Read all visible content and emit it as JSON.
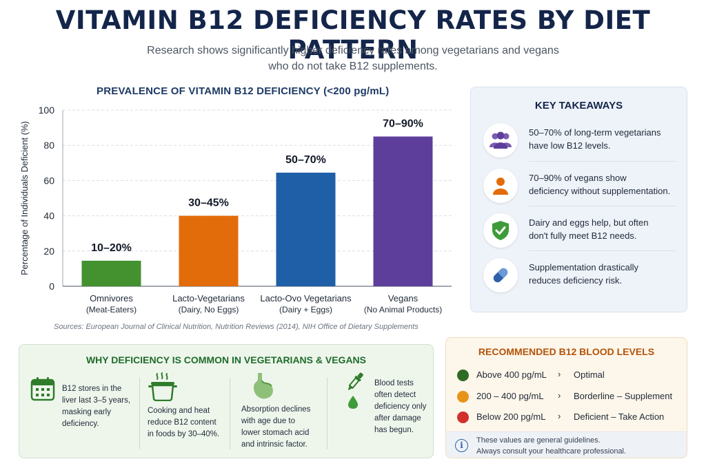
{
  "header": {
    "title": "VITAMIN B12 DEFICIENCY RATES BY DIET PATTERN",
    "subtitle_line1": "Research shows significantly higher deficiency rates among vegetarians and vegans",
    "subtitle_line2": "who do not take B12 supplements."
  },
  "chart_data": {
    "type": "bar",
    "title": "PREVALENCE OF VITAMIN B12 DEFICIENCY (<200 pg/mL)",
    "ylabel": "Percentage of Individuals Deficient (%)",
    "xlabel": "",
    "ylim": [
      0,
      100
    ],
    "yticks": [
      0,
      20,
      40,
      60,
      80,
      100
    ],
    "grid": true,
    "categories": [
      {
        "line1": "Omnivores",
        "line2": "(Meat-Eaters)"
      },
      {
        "line1": "Lacto-Vegetarians",
        "line2": "(Dairy, No Eggs)"
      },
      {
        "line1": "Lacto-Ovo Vegetarians",
        "line2": "(Dairy + Eggs)"
      },
      {
        "line1": "Vegans",
        "line2": "(No Animal Products)"
      }
    ],
    "values": [
      14.5,
      40,
      64.5,
      85
    ],
    "value_labels": [
      "10–20%",
      "30–45%",
      "50–70%",
      "70–90%"
    ],
    "colors": [
      "#43912f",
      "#e36c0a",
      "#1f5fa7",
      "#5e3e9b"
    ]
  },
  "sources": "Sources:  European Journal of Clinical Nutrition, Nutrition Reviews (2014), NIH Office of Dietary Supplements",
  "takeaways": {
    "title": "KEY TAKEAWAYS",
    "items": [
      {
        "icon": "people-icon",
        "line1": "50–70% of long-term vegetarians",
        "line2": "have low B12 levels."
      },
      {
        "icon": "person-icon",
        "line1": "70–90% of vegans show",
        "line2": "deficiency without supplementation."
      },
      {
        "icon": "shield-check-icon",
        "line1": "Dairy and eggs help, but often",
        "line2": "don't fully meet B12 needs."
      },
      {
        "icon": "pill-icon",
        "line1": "Supplementation drastically",
        "line2": "reduces deficiency risk."
      }
    ]
  },
  "why": {
    "title": "WHY DEFICIENCY IS COMMON IN VEGETARIANS & VEGANS",
    "items": [
      {
        "icon": "calendar-icon",
        "lines": [
          "B12 stores in the",
          "liver last 3–5 years,",
          "masking early",
          "deficiency."
        ]
      },
      {
        "icon": "cooking-pot-icon",
        "lines": [
          "Cooking and heat",
          "reduce B12 content",
          "in foods by 30–40%."
        ]
      },
      {
        "icon": "stomach-icon",
        "lines": [
          "Absorption declines",
          "with age due to",
          "lower stomach acid",
          "and intrinsic factor."
        ]
      },
      {
        "icon": "dropper-icon",
        "lines": [
          "Blood tests",
          "often detect",
          "deficiency only",
          "after damage",
          "has begun."
        ]
      }
    ]
  },
  "levels": {
    "title": "RECOMMENDED B12 BLOOD LEVELS",
    "rows": [
      {
        "color": "#2e6b25",
        "range": "Above 400 pg/mL",
        "arrow": "›",
        "status": "Optimal"
      },
      {
        "color": "#e69417",
        "range": "200 – 400 pg/mL",
        "arrow": "›",
        "status": "Borderline – Supplement"
      },
      {
        "color": "#d2302a",
        "range": "Below 200 pg/mL",
        "arrow": "›",
        "status": "Deficient – Take Action"
      }
    ],
    "note_line1": "These values are general guidelines.",
    "note_line2": "Always consult your healthcare professional."
  }
}
